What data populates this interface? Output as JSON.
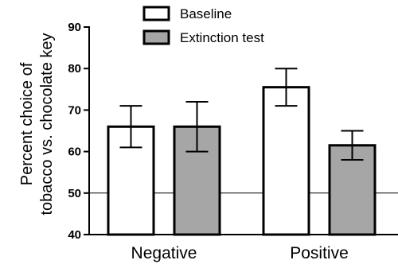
{
  "chart_data": {
    "type": "bar",
    "title": "",
    "xlabel": "",
    "ylabel_lines": [
      "Percent choice of",
      "tobacco vs. chocolate key"
    ],
    "categories": [
      "Negative",
      "Positive"
    ],
    "series": [
      {
        "name": "Baseline",
        "values": [
          66,
          75.5
        ],
        "err_low": [
          61,
          71
        ],
        "err_high": [
          71,
          80
        ],
        "color": "#ffffff"
      },
      {
        "name": "Extinction test",
        "values": [
          66,
          61.5
        ],
        "err_low": [
          60,
          58
        ],
        "err_high": [
          72,
          65
        ],
        "color": "#a6a6a6"
      }
    ],
    "ylim": [
      40,
      90
    ],
    "yticks": [
      40,
      50,
      60,
      70,
      80,
      90
    ],
    "reference_line": 50,
    "legend_position": "top"
  }
}
